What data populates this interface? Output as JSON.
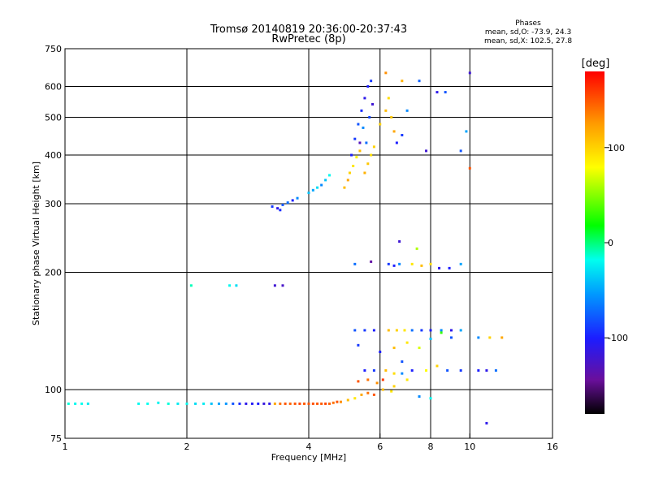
{
  "chart_data": {
    "type": "scatter",
    "title": "Tromsø 20140819 20:36:00-20:37:43",
    "subtitle": "RwPretec (8p)",
    "xlabel": "Frequency [MHz]",
    "ylabel": "Stationary phase Virtual Height [km]",
    "xscale": "log",
    "yscale": "log",
    "xlim": [
      1,
      16
    ],
    "ylim": [
      75,
      750
    ],
    "xticks": [
      1,
      2,
      4,
      6,
      8,
      10,
      16
    ],
    "xtick_labels": [
      "1",
      "2",
      "4",
      "6",
      "8",
      "10",
      "16"
    ],
    "yticks": [
      75,
      100,
      200,
      300,
      400,
      500,
      600,
      750
    ],
    "ytick_labels": [
      "75",
      "100",
      "200",
      "300",
      "400",
      "500",
      "600",
      "750"
    ],
    "grid_x": [
      2,
      4,
      6,
      8,
      10
    ],
    "grid_y": [
      100,
      200,
      300,
      400,
      500,
      600
    ],
    "grid": true,
    "phase_info": {
      "heading": "Phases",
      "line_o": "mean, sd,O: -73.9, 24.3",
      "line_x": "mean, sd,X: 102.5, 27.8"
    },
    "colorbar": {
      "label": "[deg]",
      "range": [
        -180,
        180
      ],
      "ticks": [
        100,
        0,
        -100
      ],
      "tick_labels": [
        "100",
        "0",
        "-100"
      ],
      "colormap": "rainbow"
    },
    "points": [
      [
        1.02,
        92,
        -15
      ],
      [
        1.06,
        92,
        -20
      ],
      [
        1.1,
        92,
        -18
      ],
      [
        1.14,
        92,
        -25
      ],
      [
        1.52,
        92,
        -20
      ],
      [
        1.6,
        92,
        -18
      ],
      [
        1.7,
        92.5,
        -22
      ],
      [
        1.8,
        92,
        -15
      ],
      [
        1.9,
        92,
        -25
      ],
      [
        2.0,
        92,
        -20
      ],
      [
        2.1,
        92,
        -30
      ],
      [
        2.2,
        92,
        -25
      ],
      [
        2.3,
        92,
        -40
      ],
      [
        2.4,
        92,
        -50
      ],
      [
        2.5,
        92,
        -55
      ],
      [
        2.6,
        92,
        -80
      ],
      [
        2.7,
        92,
        -95
      ],
      [
        2.8,
        92,
        -110
      ],
      [
        2.9,
        92,
        -105
      ],
      [
        3.0,
        92,
        -100
      ],
      [
        3.1,
        92,
        -115
      ],
      [
        3.2,
        92,
        -110
      ],
      [
        3.3,
        92,
        120
      ],
      [
        3.4,
        92,
        140
      ],
      [
        3.5,
        92,
        150
      ],
      [
        3.6,
        92,
        145
      ],
      [
        3.7,
        92,
        150
      ],
      [
        3.8,
        92,
        155
      ],
      [
        3.9,
        92,
        148
      ],
      [
        4.0,
        92,
        150
      ],
      [
        4.1,
        92,
        152
      ],
      [
        4.2,
        92,
        150
      ],
      [
        4.3,
        92,
        148
      ],
      [
        4.4,
        92,
        155
      ],
      [
        4.5,
        92,
        145
      ],
      [
        4.6,
        92.5,
        140
      ],
      [
        4.7,
        93,
        150
      ],
      [
        4.8,
        93,
        130
      ],
      [
        5.0,
        94,
        110
      ],
      [
        5.2,
        95,
        90
      ],
      [
        5.4,
        97,
        120
      ],
      [
        5.6,
        98,
        140
      ],
      [
        5.8,
        97,
        150
      ],
      [
        6.1,
        100,
        110
      ],
      [
        6.4,
        99,
        90
      ],
      [
        2.05,
        185,
        -10
      ],
      [
        2.55,
        185,
        -20
      ],
      [
        2.65,
        185,
        -30
      ],
      [
        3.3,
        185,
        -120
      ],
      [
        3.45,
        185,
        -125
      ],
      [
        3.25,
        295,
        -90
      ],
      [
        3.35,
        292,
        -110
      ],
      [
        3.45,
        298,
        -80
      ],
      [
        3.55,
        302,
        -70
      ],
      [
        3.65,
        306,
        -100
      ],
      [
        3.75,
        310,
        -60
      ],
      [
        3.4,
        289,
        -95
      ],
      [
        4.0,
        320,
        -40
      ],
      [
        4.1,
        325,
        -50
      ],
      [
        4.2,
        330,
        -30
      ],
      [
        4.3,
        335,
        -60
      ],
      [
        4.4,
        345,
        -40
      ],
      [
        4.5,
        355,
        -20
      ],
      [
        4.9,
        330,
        110
      ],
      [
        5.0,
        345,
        120
      ],
      [
        5.05,
        360,
        100
      ],
      [
        5.15,
        375,
        90
      ],
      [
        5.25,
        395,
        85
      ],
      [
        5.35,
        410,
        110
      ],
      [
        5.5,
        360,
        115
      ],
      [
        5.6,
        380,
        105
      ],
      [
        5.7,
        400,
        95
      ],
      [
        5.8,
        420,
        100
      ],
      [
        5.1,
        400,
        -100
      ],
      [
        5.2,
        440,
        -90
      ],
      [
        5.3,
        480,
        -80
      ],
      [
        5.4,
        520,
        -95
      ],
      [
        5.5,
        560,
        -110
      ],
      [
        5.6,
        600,
        -100
      ],
      [
        5.7,
        620,
        -90
      ],
      [
        5.45,
        470,
        -60
      ],
      [
        5.55,
        430,
        -70
      ],
      [
        5.65,
        500,
        -85
      ],
      [
        5.75,
        540,
        -120
      ],
      [
        5.35,
        430,
        -130
      ],
      [
        6.0,
        480,
        100
      ],
      [
        6.2,
        520,
        110
      ],
      [
        6.4,
        500,
        105
      ],
      [
        6.5,
        460,
        120
      ],
      [
        6.3,
        560,
        95
      ],
      [
        6.6,
        430,
        -100
      ],
      [
        6.8,
        450,
        -90
      ],
      [
        6.2,
        650,
        130
      ],
      [
        6.8,
        620,
        115
      ],
      [
        7.0,
        520,
        -60
      ],
      [
        7.5,
        620,
        -75
      ],
      [
        8.3,
        580,
        -110
      ],
      [
        8.7,
        580,
        -80
      ],
      [
        10.0,
        650,
        -120
      ],
      [
        9.5,
        410,
        -80
      ],
      [
        10.0,
        370,
        150
      ],
      [
        9.8,
        460,
        -50
      ],
      [
        7.8,
        410,
        -120
      ],
      [
        5.2,
        210,
        -70
      ],
      [
        6.3,
        210,
        -90
      ],
      [
        6.5,
        208,
        -100
      ],
      [
        6.7,
        210,
        -60
      ],
      [
        7.2,
        210,
        90
      ],
      [
        7.6,
        208,
        110
      ],
      [
        8.0,
        210,
        95
      ],
      [
        8.4,
        205,
        -110
      ],
      [
        8.9,
        205,
        -100
      ],
      [
        9.5,
        210,
        -50
      ],
      [
        7.4,
        230,
        60
      ],
      [
        6.7,
        240,
        -120
      ],
      [
        5.7,
        213,
        -140
      ],
      [
        5.2,
        142,
        -80
      ],
      [
        5.5,
        142,
        -90
      ],
      [
        5.8,
        142,
        -100
      ],
      [
        6.3,
        142,
        110
      ],
      [
        6.6,
        142,
        100
      ],
      [
        6.9,
        142,
        90
      ],
      [
        7.2,
        142,
        -70
      ],
      [
        7.6,
        142,
        -90
      ],
      [
        8.0,
        142,
        -100
      ],
      [
        8.5,
        142,
        -60
      ],
      [
        9.0,
        142,
        -110
      ],
      [
        9.5,
        142,
        -50
      ],
      [
        5.3,
        130,
        -90
      ],
      [
        6.0,
        125,
        -100
      ],
      [
        6.5,
        128,
        110
      ],
      [
        7.0,
        132,
        90
      ],
      [
        7.5,
        128,
        70
      ],
      [
        8.0,
        135,
        -40
      ],
      [
        8.5,
        140,
        30
      ],
      [
        9.0,
        136,
        -80
      ],
      [
        10.5,
        136,
        -60
      ],
      [
        11.2,
        136,
        100
      ],
      [
        12.0,
        136,
        120
      ],
      [
        6.8,
        118,
        -80
      ],
      [
        5.5,
        112,
        -100
      ],
      [
        5.8,
        112,
        -90
      ],
      [
        6.2,
        112,
        110
      ],
      [
        6.5,
        110,
        95
      ],
      [
        6.8,
        110,
        -60
      ],
      [
        7.2,
        112,
        -100
      ],
      [
        7.8,
        112,
        80
      ],
      [
        8.3,
        115,
        100
      ],
      [
        8.8,
        112,
        -80
      ],
      [
        9.5,
        112,
        -90
      ],
      [
        10.5,
        112,
        -100
      ],
      [
        11.0,
        112,
        -110
      ],
      [
        11.6,
        112,
        -70
      ],
      [
        5.3,
        105,
        150
      ],
      [
        5.6,
        106,
        140
      ],
      [
        5.9,
        104,
        130
      ],
      [
        6.1,
        106,
        160
      ],
      [
        6.5,
        102,
        100
      ],
      [
        7.0,
        106,
        90
      ],
      [
        8.0,
        95,
        -20
      ],
      [
        7.5,
        96,
        -60
      ],
      [
        11.0,
        82,
        -110
      ]
    ]
  }
}
